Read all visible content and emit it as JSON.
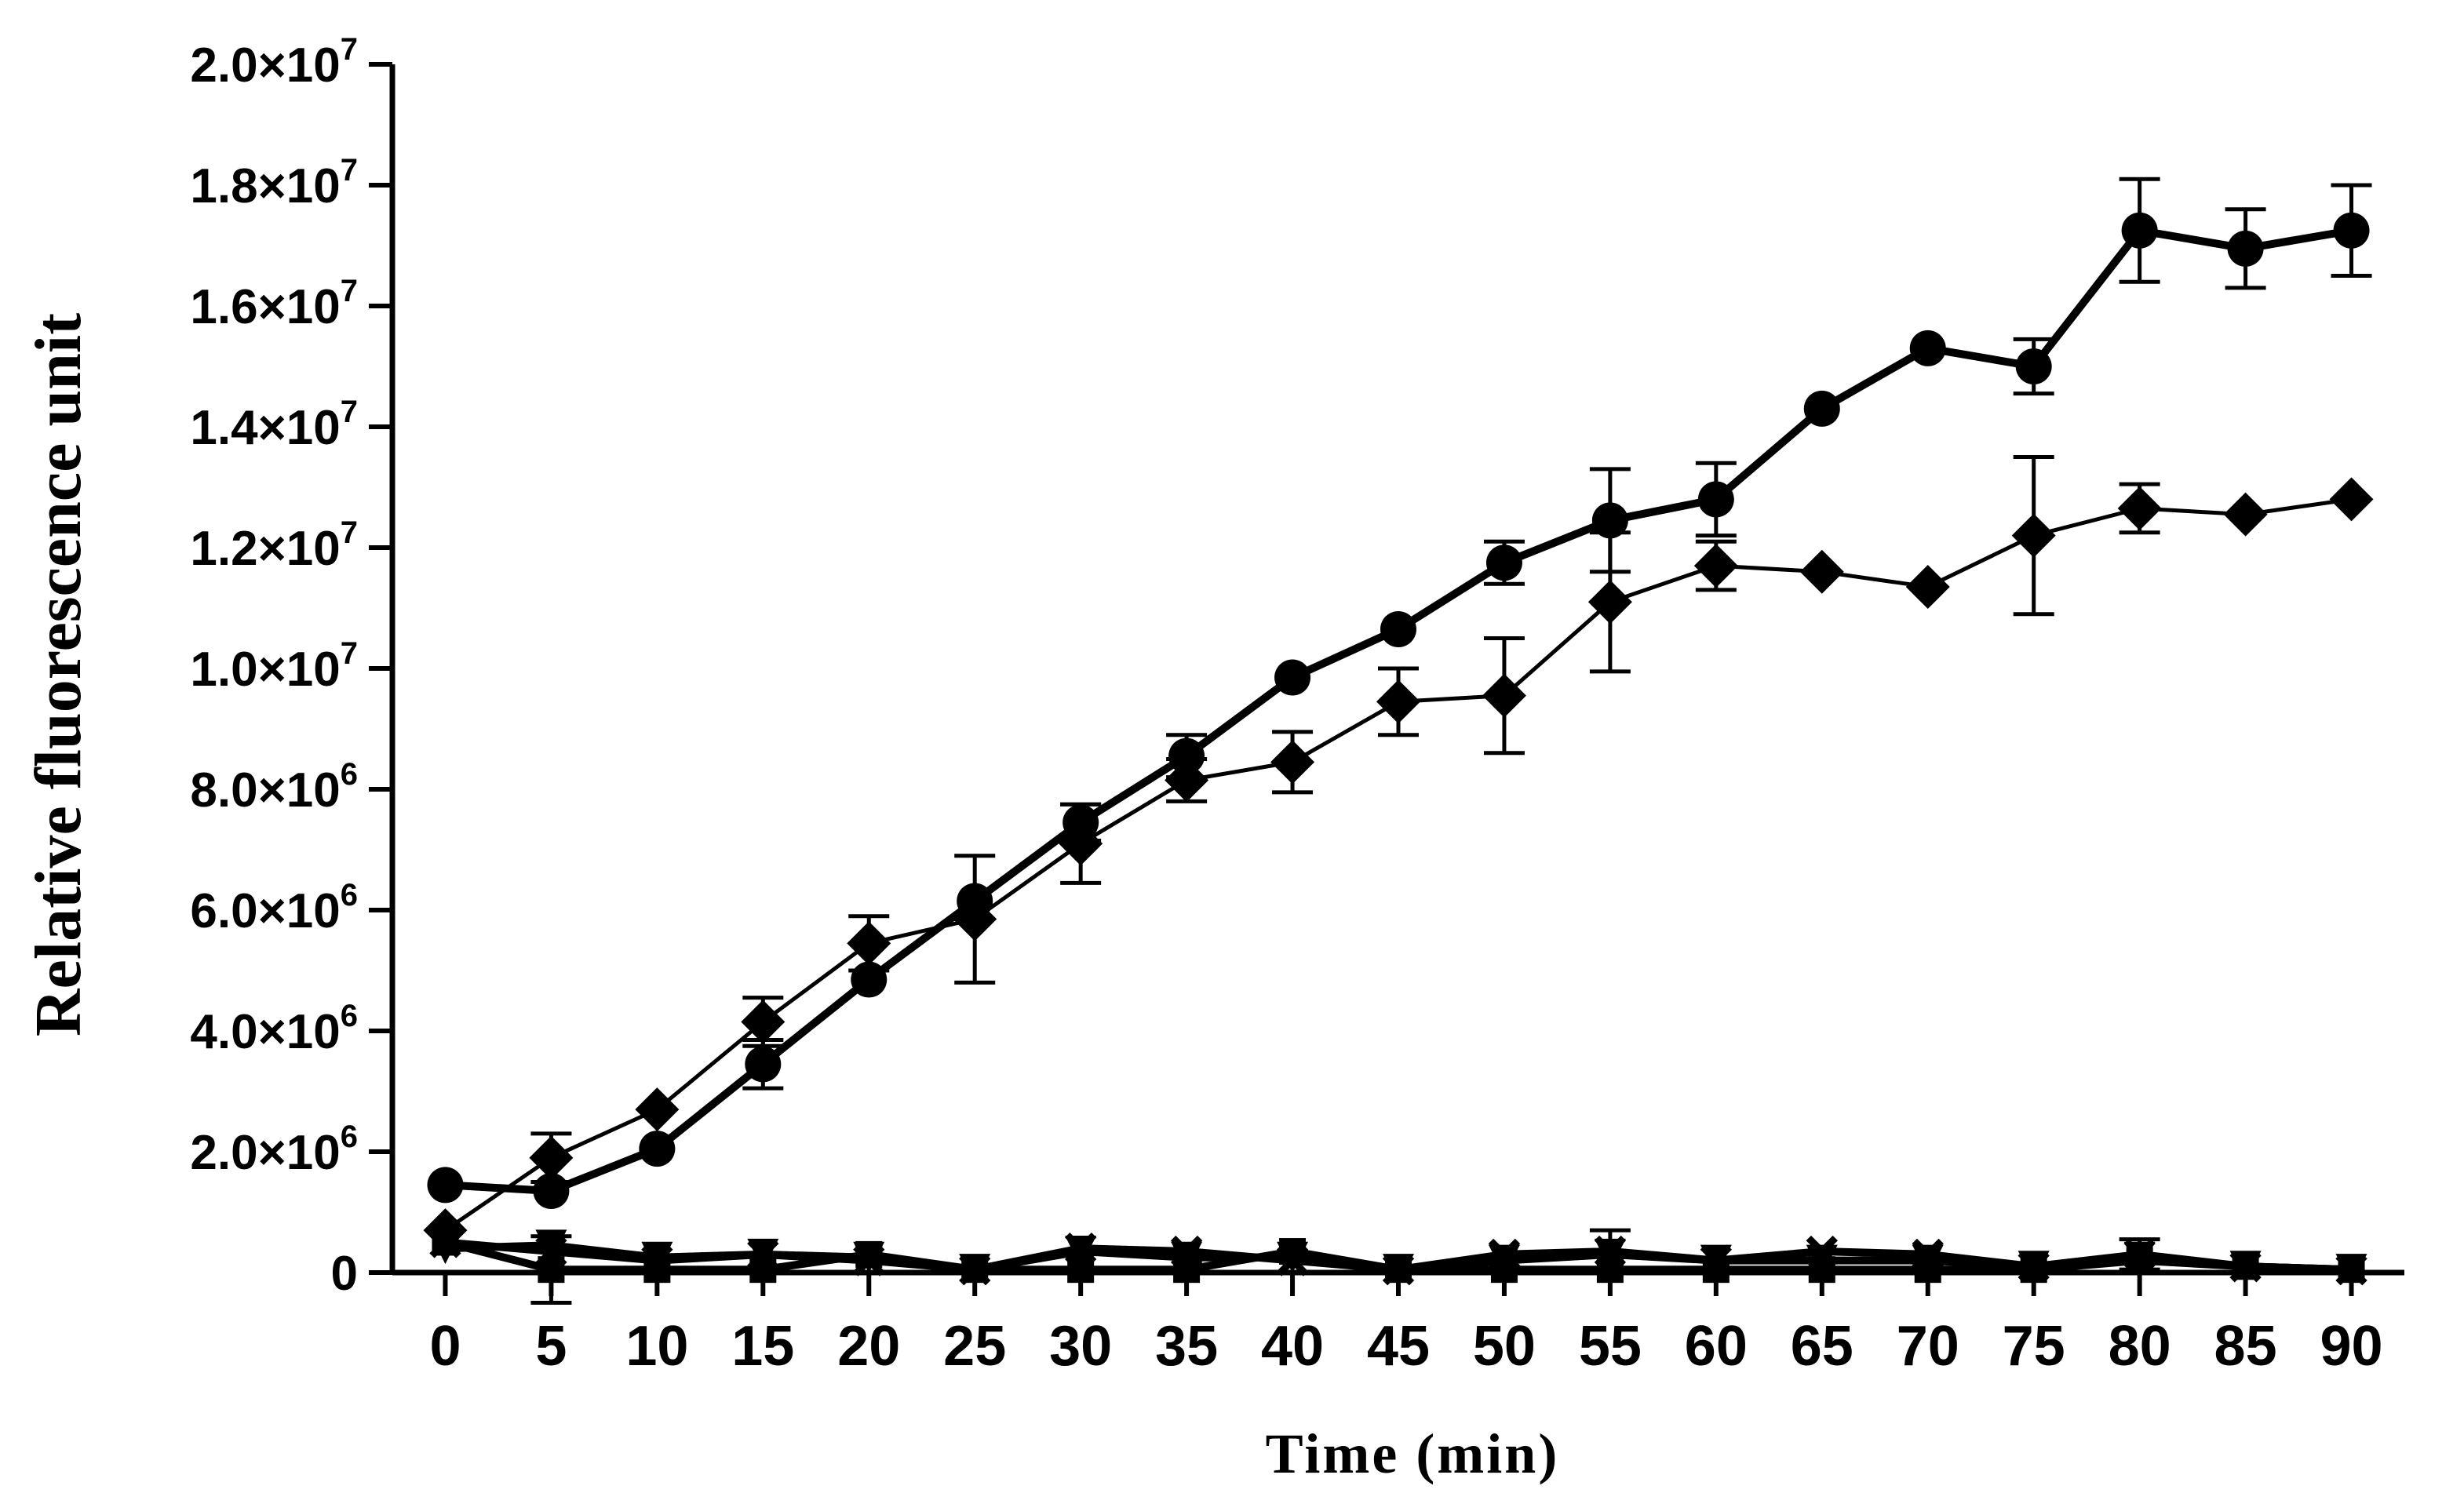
{
  "chart_data": {
    "type": "line",
    "title": "",
    "xlabel": "Time (min)",
    "ylabel": "Relative fluorescence unit",
    "x": [
      0,
      5,
      10,
      15,
      20,
      25,
      30,
      35,
      40,
      45,
      50,
      55,
      60,
      65,
      70,
      75,
      80,
      85,
      90
    ],
    "xlim": [
      -2.5,
      92.5
    ],
    "ylim": [
      0,
      20000000
    ],
    "x_ticks": [
      0,
      5,
      10,
      15,
      20,
      25,
      30,
      35,
      40,
      45,
      50,
      55,
      60,
      65,
      70,
      75,
      80,
      85,
      90
    ],
    "y_ticks": [
      {
        "value": 0,
        "mantissa": "0",
        "exp": ""
      },
      {
        "value": 2000000,
        "mantissa": "2.0×10",
        "exp": "6"
      },
      {
        "value": 4000000,
        "mantissa": "4.0×10",
        "exp": "6"
      },
      {
        "value": 6000000,
        "mantissa": "6.0×10",
        "exp": "6"
      },
      {
        "value": 8000000,
        "mantissa": "8.0×10",
        "exp": "6"
      },
      {
        "value": 10000000,
        "mantissa": "1.0×10",
        "exp": "7"
      },
      {
        "value": 12000000,
        "mantissa": "1.2×10",
        "exp": "7"
      },
      {
        "value": 14000000,
        "mantissa": "1.4×10",
        "exp": "7"
      },
      {
        "value": 16000000,
        "mantissa": "1.6×10",
        "exp": "7"
      },
      {
        "value": 18000000,
        "mantissa": "1.8×10",
        "exp": "7"
      },
      {
        "value": 20000000,
        "mantissa": "2.0×10",
        "exp": "7"
      }
    ],
    "grid": false,
    "legend": "none",
    "series": [
      {
        "marker": "circle",
        "line_weight": "thick",
        "color": "#000000",
        "values": [
          1450000,
          1350000,
          2050000,
          3450000,
          4850000,
          6150000,
          7450000,
          8550000,
          9850000,
          10650000,
          11750000,
          12450000,
          12800000,
          14300000,
          15300000,
          15000000,
          17250000,
          16950000,
          17250000
        ],
        "errors": [
          0,
          0,
          0,
          400000,
          0,
          0,
          300000,
          350000,
          0,
          0,
          350000,
          850000,
          600000,
          0,
          0,
          450000,
          850000,
          650000,
          750000
        ]
      },
      {
        "marker": "diamond",
        "line_weight": "thin",
        "color": "#000000",
        "values": [
          700000,
          1900000,
          2700000,
          4150000,
          5450000,
          5850000,
          7100000,
          8150000,
          8450000,
          9450000,
          9550000,
          11100000,
          11700000,
          11600000,
          11350000,
          12200000,
          12650000,
          12550000,
          12800000
        ],
        "errors": [
          0,
          400000,
          0,
          400000,
          450000,
          1050000,
          650000,
          350000,
          500000,
          550000,
          950000,
          1150000,
          400000,
          0,
          0,
          1300000,
          400000,
          0,
          0
        ]
      },
      {
        "marker": "cross",
        "line_weight": "thick",
        "color": "#000000",
        "values": [
          500000,
          350000,
          200000,
          300000,
          200000,
          50000,
          400000,
          350000,
          200000,
          50000,
          300000,
          350000,
          200000,
          350000,
          300000,
          100000,
          300000,
          100000,
          50000
        ],
        "errors": [
          0,
          0,
          0,
          0,
          0,
          0,
          0,
          0,
          0,
          0,
          0,
          350000,
          0,
          0,
          0,
          0,
          250000,
          0,
          0
        ]
      },
      {
        "marker": "square",
        "line_weight": "thick",
        "color": "#000000",
        "values": [
          500000,
          50000,
          50000,
          50000,
          300000,
          50000,
          50000,
          50000,
          350000,
          50000,
          50000,
          50000,
          50000,
          50000,
          50000,
          50000,
          200000,
          100000,
          50000
        ],
        "errors": [
          0,
          550000,
          0,
          0,
          0,
          0,
          0,
          0,
          0,
          0,
          0,
          0,
          0,
          0,
          0,
          0,
          0,
          0,
          0
        ]
      },
      {
        "marker": "triangle-down",
        "line_weight": "thick",
        "color": "#000000",
        "values": [
          400000,
          450000,
          250000,
          300000,
          250000,
          50000,
          350000,
          250000,
          250000,
          50000,
          200000,
          300000,
          200000,
          200000,
          200000,
          100000,
          250000,
          100000,
          50000
        ],
        "errors": [
          0,
          0,
          0,
          0,
          0,
          0,
          0,
          0,
          0,
          0,
          0,
          0,
          0,
          0,
          0,
          0,
          0,
          0,
          0
        ]
      }
    ]
  }
}
